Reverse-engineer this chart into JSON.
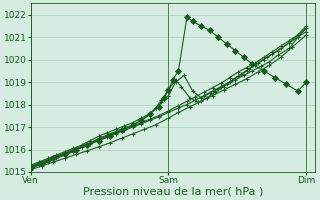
{
  "title": "",
  "xlabel": "Pression niveau de la mer( hPa )",
  "ylabel": "",
  "bg_color": "#d4ede0",
  "grid_color": "#aacfba",
  "line_color": "#1a5c20",
  "ylim": [
    1015.0,
    1022.5
  ],
  "yticks": [
    1015,
    1016,
    1017,
    1018,
    1019,
    1020,
    1021,
    1022
  ],
  "xtick_labels": [
    "Ven",
    "Sam",
    "Dim"
  ],
  "xtick_positions": [
    0.0,
    0.485,
    0.97
  ],
  "vline_positions": [
    0.0,
    0.485,
    0.97
  ],
  "series": [
    {
      "x": [
        0.0,
        0.03,
        0.06,
        0.09,
        0.12,
        0.15,
        0.18,
        0.21,
        0.24,
        0.27,
        0.3,
        0.33,
        0.36,
        0.39,
        0.42,
        0.45,
        0.485,
        0.52,
        0.55,
        0.58,
        0.61,
        0.64,
        0.67,
        0.7,
        0.73,
        0.76,
        0.79,
        0.82,
        0.85,
        0.88,
        0.91,
        0.94,
        0.97
      ],
      "y": [
        1015.2,
        1015.35,
        1015.5,
        1015.65,
        1015.8,
        1015.95,
        1016.1,
        1016.25,
        1016.4,
        1016.55,
        1016.7,
        1016.85,
        1017.0,
        1017.15,
        1017.3,
        1017.45,
        1017.65,
        1017.85,
        1018.0,
        1018.2,
        1018.4,
        1018.6,
        1018.8,
        1019.0,
        1019.25,
        1019.5,
        1019.75,
        1020.0,
        1020.25,
        1020.5,
        1020.75,
        1021.0,
        1021.25
      ],
      "marker": "+",
      "ms": 3,
      "lw": 0.8
    },
    {
      "x": [
        0.0,
        0.03,
        0.06,
        0.09,
        0.12,
        0.15,
        0.18,
        0.21,
        0.24,
        0.27,
        0.3,
        0.33,
        0.36,
        0.39,
        0.42,
        0.45,
        0.485,
        0.52,
        0.55,
        0.58,
        0.61,
        0.64,
        0.67,
        0.7,
        0.73,
        0.76,
        0.79,
        0.82,
        0.85,
        0.88,
        0.91,
        0.94,
        0.97
      ],
      "y": [
        1015.25,
        1015.4,
        1015.55,
        1015.7,
        1015.85,
        1016.0,
        1016.15,
        1016.3,
        1016.45,
        1016.6,
        1016.75,
        1016.9,
        1017.05,
        1017.2,
        1017.35,
        1017.5,
        1017.72,
        1017.95,
        1018.15,
        1018.35,
        1018.55,
        1018.75,
        1018.95,
        1019.2,
        1019.45,
        1019.65,
        1019.85,
        1020.1,
        1020.35,
        1020.6,
        1020.85,
        1021.1,
        1021.4
      ],
      "marker": "+",
      "ms": 3,
      "lw": 0.8
    },
    {
      "x": [
        0.0,
        0.03,
        0.06,
        0.09,
        0.12,
        0.15,
        0.18,
        0.21,
        0.24,
        0.27,
        0.3,
        0.33,
        0.36,
        0.39,
        0.42,
        0.44,
        0.46,
        0.485,
        0.51,
        0.54,
        0.57,
        0.6,
        0.63,
        0.66,
        0.69,
        0.72,
        0.75,
        0.78,
        0.81,
        0.84,
        0.87,
        0.91,
        0.94,
        0.97
      ],
      "y": [
        1015.3,
        1015.45,
        1015.6,
        1015.75,
        1015.9,
        1016.05,
        1016.2,
        1016.4,
        1016.6,
        1016.75,
        1016.9,
        1017.05,
        1017.2,
        1017.4,
        1017.6,
        1017.85,
        1018.1,
        1018.4,
        1019.0,
        1019.3,
        1018.6,
        1018.3,
        1018.5,
        1018.7,
        1018.9,
        1019.1,
        1019.3,
        1019.5,
        1019.7,
        1019.9,
        1020.2,
        1020.5,
        1021.0,
        1021.4
      ],
      "marker": "+",
      "ms": 3,
      "lw": 0.8
    },
    {
      "x": [
        0.0,
        0.03,
        0.06,
        0.09,
        0.12,
        0.15,
        0.18,
        0.21,
        0.24,
        0.27,
        0.3,
        0.33,
        0.36,
        0.39,
        0.42,
        0.44,
        0.46,
        0.485,
        0.51,
        0.53,
        0.56,
        0.59,
        0.62,
        0.65,
        0.68,
        0.71,
        0.74,
        0.77,
        0.8,
        0.83,
        0.87,
        0.91,
        0.94,
        0.97
      ],
      "y": [
        1015.15,
        1015.3,
        1015.45,
        1015.6,
        1015.75,
        1015.9,
        1016.1,
        1016.3,
        1016.5,
        1016.65,
        1016.8,
        1016.95,
        1017.1,
        1017.3,
        1017.55,
        1017.85,
        1018.2,
        1018.65,
        1019.1,
        1018.8,
        1018.3,
        1018.1,
        1018.3,
        1018.55,
        1018.8,
        1019.1,
        1019.35,
        1019.6,
        1019.85,
        1020.1,
        1020.4,
        1020.75,
        1021.1,
        1021.5
      ],
      "marker": "+",
      "ms": 3,
      "lw": 0.8
    },
    {
      "x": [
        0.0,
        0.04,
        0.08,
        0.12,
        0.16,
        0.2,
        0.24,
        0.28,
        0.32,
        0.36,
        0.39,
        0.42,
        0.45,
        0.47,
        0.485,
        0.5,
        0.52,
        0.55,
        0.57,
        0.6,
        0.63,
        0.66,
        0.69,
        0.72,
        0.75,
        0.78,
        0.82,
        0.86,
        0.9,
        0.94,
        0.97
      ],
      "y": [
        1015.2,
        1015.4,
        1015.6,
        1015.8,
        1016.0,
        1016.2,
        1016.4,
        1016.6,
        1016.85,
        1017.1,
        1017.3,
        1017.6,
        1017.9,
        1018.3,
        1018.65,
        1019.1,
        1019.5,
        1021.9,
        1021.7,
        1021.5,
        1021.3,
        1021.0,
        1020.7,
        1020.4,
        1020.1,
        1019.8,
        1019.5,
        1019.2,
        1018.9,
        1018.6,
        1019.0
      ],
      "marker": "D",
      "ms": 3,
      "lw": 0.8
    },
    {
      "x": [
        0.0,
        0.04,
        0.08,
        0.12,
        0.16,
        0.2,
        0.24,
        0.28,
        0.32,
        0.36,
        0.4,
        0.44,
        0.485,
        0.52,
        0.56,
        0.6,
        0.64,
        0.68,
        0.72,
        0.76,
        0.8,
        0.84,
        0.88,
        0.92,
        0.97
      ],
      "y": [
        1015.1,
        1015.27,
        1015.44,
        1015.61,
        1015.78,
        1015.95,
        1016.12,
        1016.3,
        1016.5,
        1016.7,
        1016.9,
        1017.1,
        1017.4,
        1017.65,
        1017.9,
        1018.15,
        1018.4,
        1018.65,
        1018.9,
        1019.15,
        1019.45,
        1019.75,
        1020.1,
        1020.55,
        1021.1
      ],
      "marker": "+",
      "ms": 3,
      "lw": 0.8
    }
  ],
  "xlabel_fontsize": 8,
  "tick_fontsize": 6.5
}
